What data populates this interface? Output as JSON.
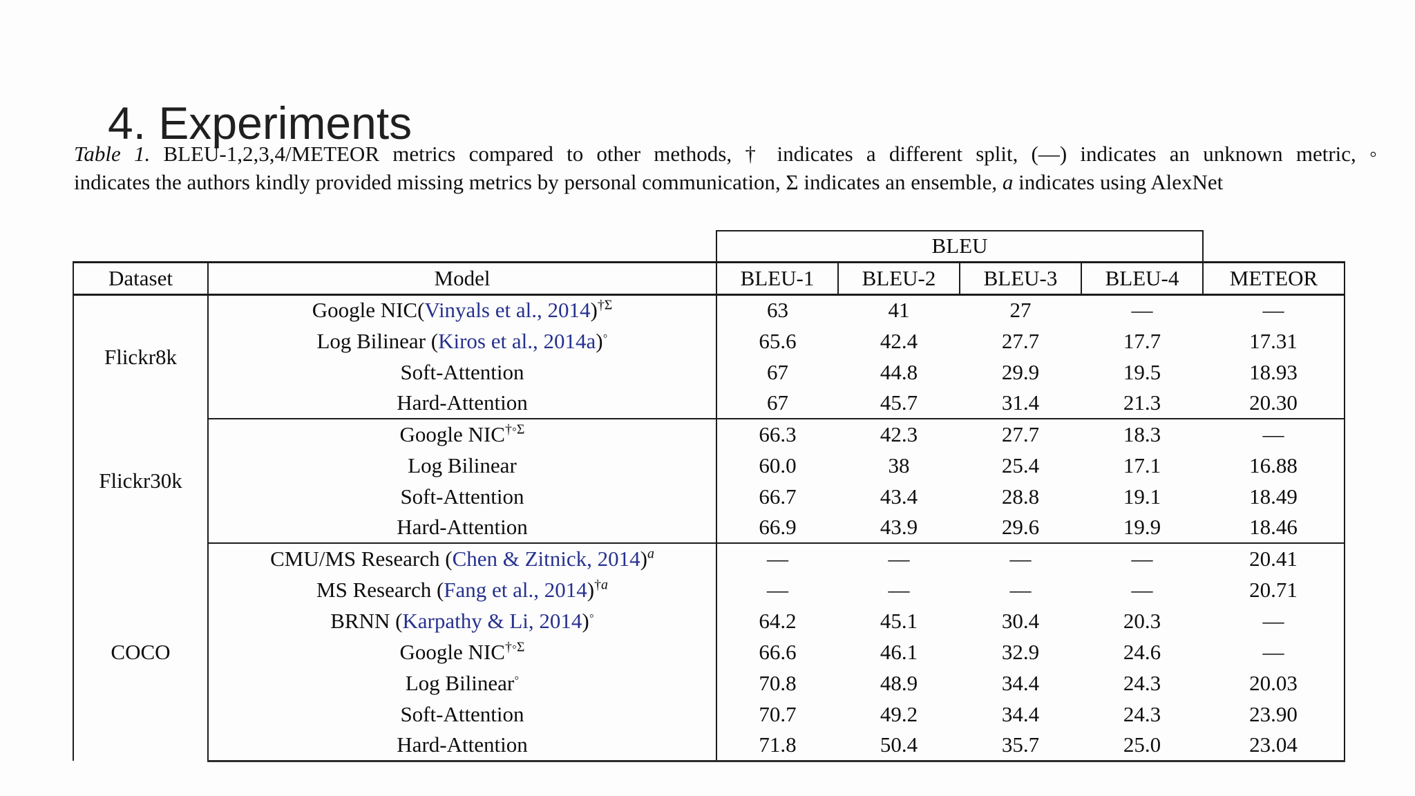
{
  "title": "4. Experiments",
  "colors": {
    "citation": "#26318e",
    "text": "#141414",
    "background": "#fdfdfd",
    "border": "#1c1c1c"
  },
  "caption": {
    "line1": [
      {
        "t": "Table 1.",
        "i": true
      },
      {
        "t": " BLEU-1,2,3,4/METEOR metrics compared to other methods, † indicates a different split, (—) indicates an unknown metric, ◦"
      }
    ],
    "line2": [
      {
        "t": "indicates the authors kindly provided missing metrics by personal communication, Σ indicates an ensemble, "
      },
      {
        "t": "a",
        "i": true
      },
      {
        "t": " indicates using AlexNet"
      }
    ]
  },
  "table": {
    "group_header": "BLEU",
    "columns": [
      "Dataset",
      "Model",
      "BLEU-1",
      "BLEU-2",
      "BLEU-3",
      "BLEU-4",
      "METEOR"
    ],
    "groups": [
      {
        "dataset": "Flickr8k",
        "rows": [
          {
            "model": [
              {
                "t": "Google NIC("
              },
              {
                "t": "Vinyals et al., 2014",
                "c": true
              },
              {
                "t": ")"
              }
            ],
            "sup": [
              {
                "t": "†Σ"
              }
            ],
            "values": [
              {
                "v": "63"
              },
              {
                "v": "41"
              },
              {
                "v": "27"
              },
              {
                "v": "—"
              },
              {
                "v": "—"
              }
            ]
          },
          {
            "model": [
              {
                "t": "Log Bilinear ("
              },
              {
                "t": "Kiros et al., 2014a",
                "c": true
              },
              {
                "t": ")"
              }
            ],
            "sup": [
              {
                "t": "◦"
              }
            ],
            "values": [
              {
                "v": "65.6"
              },
              {
                "v": "42.4"
              },
              {
                "v": "27.7"
              },
              {
                "v": "17.7"
              },
              {
                "v": "17.31"
              }
            ]
          },
          {
            "model": [
              {
                "t": "Soft-Attention"
              }
            ],
            "values": [
              {
                "v": "67",
                "b": true
              },
              {
                "v": "44.8"
              },
              {
                "v": "29.9"
              },
              {
                "v": "19.5"
              },
              {
                "v": "18.93"
              }
            ]
          },
          {
            "model": [
              {
                "t": "Hard-Attention"
              }
            ],
            "values": [
              {
                "v": "67",
                "b": true
              },
              {
                "v": "45.7",
                "b": true
              },
              {
                "v": "31.4",
                "b": true
              },
              {
                "v": "21.3",
                "b": true
              },
              {
                "v": "20.30",
                "b": true
              }
            ]
          }
        ]
      },
      {
        "dataset": "Flickr30k",
        "rows": [
          {
            "model": [
              {
                "t": "Google NIC"
              }
            ],
            "sup": [
              {
                "t": "†◦Σ"
              }
            ],
            "values": [
              {
                "v": "66.3"
              },
              {
                "v": "42.3"
              },
              {
                "v": "27.7"
              },
              {
                "v": "18.3"
              },
              {
                "v": "—"
              }
            ]
          },
          {
            "model": [
              {
                "t": "Log Bilinear"
              }
            ],
            "values": [
              {
                "v": "60.0"
              },
              {
                "v": "38"
              },
              {
                "v": "25.4"
              },
              {
                "v": "17.1"
              },
              {
                "v": "16.88"
              }
            ]
          },
          {
            "model": [
              {
                "t": "Soft-Attention"
              }
            ],
            "values": [
              {
                "v": "66.7"
              },
              {
                "v": "43.4"
              },
              {
                "v": "28.8"
              },
              {
                "v": "19.1"
              },
              {
                "v": "18.49",
                "b": true
              }
            ]
          },
          {
            "model": [
              {
                "t": "Hard-Attention"
              }
            ],
            "values": [
              {
                "v": "66.9",
                "b": true
              },
              {
                "v": "43.9",
                "b": true
              },
              {
                "v": "29.6",
                "b": true
              },
              {
                "v": "19.9",
                "b": true
              },
              {
                "v": "18.46"
              }
            ]
          }
        ]
      },
      {
        "dataset": "COCO",
        "rows": [
          {
            "model": [
              {
                "t": "CMU/MS Research ("
              },
              {
                "t": "Chen & Zitnick, 2014",
                "c": true
              },
              {
                "t": ")"
              }
            ],
            "sup": [
              {
                "t": "a",
                "i": true
              }
            ],
            "values": [
              {
                "v": "—"
              },
              {
                "v": "—"
              },
              {
                "v": "—"
              },
              {
                "v": "—"
              },
              {
                "v": "20.41"
              }
            ]
          },
          {
            "model": [
              {
                "t": "MS Research ("
              },
              {
                "t": "Fang et al., 2014",
                "c": true
              },
              {
                "t": ")"
              }
            ],
            "sup": [
              {
                "t": "†"
              },
              {
                "t": "a",
                "i": true
              }
            ],
            "values": [
              {
                "v": "—"
              },
              {
                "v": "—"
              },
              {
                "v": "—"
              },
              {
                "v": "—"
              },
              {
                "v": "20.71"
              }
            ]
          },
          {
            "model": [
              {
                "t": "BRNN ("
              },
              {
                "t": "Karpathy & Li, 2014",
                "c": true
              },
              {
                "t": ")"
              }
            ],
            "sup": [
              {
                "t": "◦"
              }
            ],
            "values": [
              {
                "v": "64.2"
              },
              {
                "v": "45.1"
              },
              {
                "v": "30.4"
              },
              {
                "v": "20.3"
              },
              {
                "v": "—"
              }
            ]
          },
          {
            "model": [
              {
                "t": "Google NIC"
              }
            ],
            "sup": [
              {
                "t": "†◦Σ"
              }
            ],
            "values": [
              {
                "v": "66.6"
              },
              {
                "v": "46.1"
              },
              {
                "v": "32.9"
              },
              {
                "v": "24.6"
              },
              {
                "v": "—"
              }
            ]
          },
          {
            "model": [
              {
                "t": "Log Bilinear"
              }
            ],
            "sup": [
              {
                "t": "◦"
              }
            ],
            "values": [
              {
                "v": "70.8"
              },
              {
                "v": "48.9"
              },
              {
                "v": "34.4"
              },
              {
                "v": "24.3"
              },
              {
                "v": "20.03"
              }
            ]
          },
          {
            "model": [
              {
                "t": "Soft-Attention"
              }
            ],
            "values": [
              {
                "v": "70.7"
              },
              {
                "v": "49.2"
              },
              {
                "v": "34.4"
              },
              {
                "v": "24.3"
              },
              {
                "v": "23.90",
                "b": true
              }
            ]
          },
          {
            "model": [
              {
                "t": "Hard-Attention"
              }
            ],
            "values": [
              {
                "v": "71.8",
                "b": true
              },
              {
                "v": "50.4",
                "b": true
              },
              {
                "v": "35.7",
                "b": true
              },
              {
                "v": "25.0",
                "b": true
              },
              {
                "v": "23.04"
              }
            ]
          }
        ]
      }
    ]
  }
}
